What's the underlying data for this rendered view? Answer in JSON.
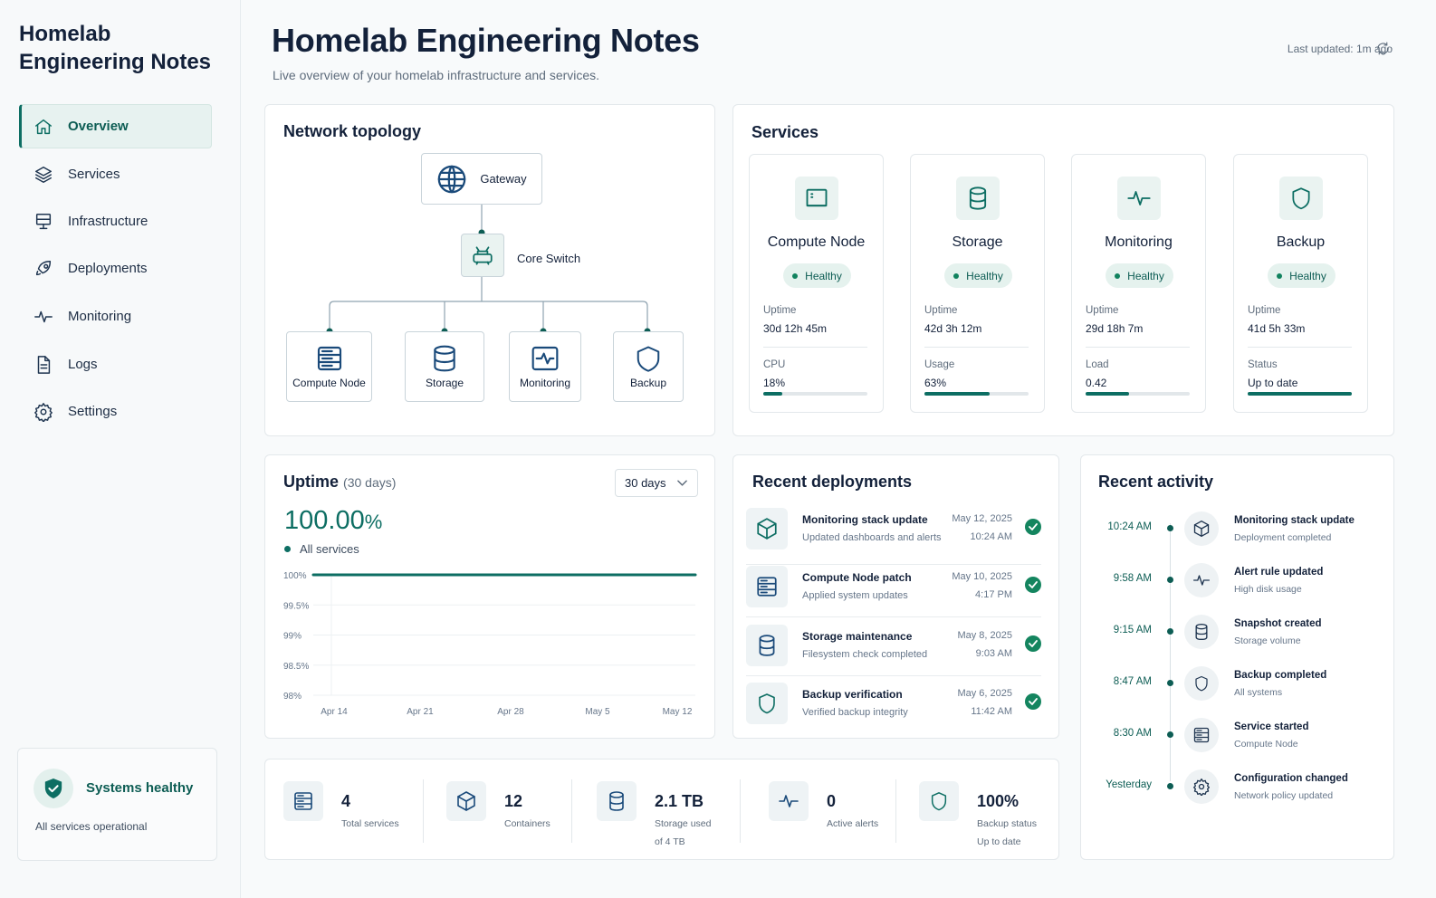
{
  "brand": "Homelab\nEngineering Notes",
  "nav": [
    {
      "label": "Overview"
    },
    {
      "label": "Services"
    },
    {
      "label": "Infrastructure"
    },
    {
      "label": "Deployments"
    },
    {
      "label": "Monitoring"
    },
    {
      "label": "Logs"
    },
    {
      "label": "Settings"
    }
  ],
  "health": {
    "title": "Systems healthy",
    "subtitle": "All services operational"
  },
  "header": {
    "title": "Homelab Engineering Notes",
    "subtitle": "Live overview of your homelab infrastructure and services.",
    "last_updated": "Last updated: 1m ago"
  },
  "topology": {
    "title": "Network topology",
    "gateway": "Gateway",
    "core": "Core Switch",
    "nodes": [
      "Compute Node",
      "Storage",
      "Monitoring",
      "Backup"
    ]
  },
  "services": {
    "title": "Services",
    "items": [
      {
        "name": "Compute Node",
        "status": "Healthy",
        "k1": "Uptime",
        "v1": "30d 12h 45m",
        "k2": "CPU",
        "v2": "18%",
        "progress": 0.18
      },
      {
        "name": "Storage",
        "status": "Healthy",
        "k1": "Uptime",
        "v1": "42d 3h 12m",
        "k2": "Usage",
        "v2": "63%",
        "progress": 0.63
      },
      {
        "name": "Monitoring",
        "status": "Healthy",
        "k1": "Uptime",
        "v1": "29d 18h 7m",
        "k2": "Load",
        "v2": "0.42",
        "progress": 0.42
      },
      {
        "name": "Backup",
        "status": "Healthy",
        "k1": "Uptime",
        "v1": "41d 5h 33m",
        "k2": "Status",
        "v2": "Up to date",
        "progress": 1.0
      }
    ]
  },
  "uptime": {
    "title": "Uptime",
    "period": "(30 days)",
    "select": "30 days",
    "value": "100.00",
    "unit": "%",
    "legend": "All services"
  },
  "chart_data": {
    "type": "line",
    "x": [
      "Apr 14",
      "Apr 21",
      "Apr 28",
      "May 5",
      "May 12"
    ],
    "y_ticks": [
      "100%",
      "99.5%",
      "99%",
      "98.5%",
      "98%"
    ],
    "ylim": [
      98,
      100
    ],
    "series": [
      {
        "name": "All services",
        "values": [
          100,
          100,
          100,
          100,
          100
        ]
      }
    ],
    "grid": true,
    "color": "#0d6e63"
  },
  "deployments": {
    "title": "Recent deployments",
    "items": [
      {
        "title": "Monitoring stack update",
        "sub": "Updated dashboards and alerts",
        "date": "May 12, 2025",
        "time": "10:24 AM",
        "icon": "cube-icon"
      },
      {
        "title": "Compute Node patch",
        "sub": "Applied system updates",
        "date": "May 10, 2025",
        "time": "4:17 PM",
        "icon": "server-icon"
      },
      {
        "title": "Storage maintenance",
        "sub": "Filesystem check completed",
        "date": "May 8, 2025",
        "time": "9:03 AM",
        "icon": "database-icon"
      },
      {
        "title": "Backup verification",
        "sub": "Verified backup integrity",
        "date": "May 6, 2025",
        "time": "11:42 AM",
        "icon": "shield-icon"
      }
    ]
  },
  "stats": [
    {
      "value": "4",
      "label": "Total services",
      "label2": ""
    },
    {
      "value": "12",
      "label": "Containers",
      "label2": ""
    },
    {
      "value": "2.1 TB",
      "label": "Storage used",
      "label2": "of 4 TB"
    },
    {
      "value": "0",
      "label": "Active alerts",
      "label2": ""
    },
    {
      "value": "100%",
      "label": "Backup status",
      "label2": "Up to date"
    }
  ],
  "activity": {
    "title": "Recent activity",
    "items": [
      {
        "time": "10:24 AM",
        "title": "Monitoring stack update",
        "sub": "Deployment completed",
        "icon": "cube-icon"
      },
      {
        "time": "9:58 AM",
        "title": "Alert rule updated",
        "sub": "High disk usage",
        "icon": "pulse-icon"
      },
      {
        "time": "9:15 AM",
        "title": "Snapshot created",
        "sub": "Storage volume",
        "icon": "database-icon"
      },
      {
        "time": "8:47 AM",
        "title": "Backup completed",
        "sub": "All systems",
        "icon": "shield-icon"
      },
      {
        "time": "8:30 AM",
        "title": "Service started",
        "sub": "Compute Node",
        "icon": "server-icon"
      },
      {
        "time": "Yesterday",
        "title": "Configuration changed",
        "sub": "Network policy updated",
        "icon": "gear-icon"
      }
    ]
  },
  "colors": {
    "accent": "#0d6e63",
    "healthy": "#14855f",
    "text": "#13213a"
  }
}
